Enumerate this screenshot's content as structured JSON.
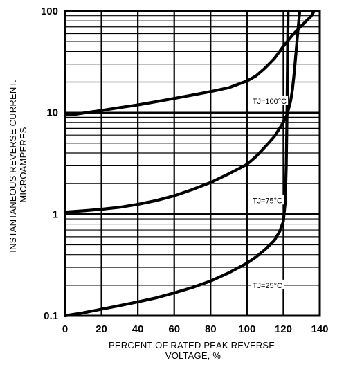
{
  "chart_data": {
    "type": "line",
    "title": "",
    "xlabel_lines": [
      "PERCENT OF RATED PEAK REVERSE",
      "VOLTAGE, %"
    ],
    "ylabel_lines": [
      "INSTANTANEOUS REVERSE CURRENT.",
      "MICROAMPERES"
    ],
    "x_scale": "linear",
    "y_scale": "log",
    "xlim": [
      0,
      140
    ],
    "ylim": [
      0.1,
      100
    ],
    "x_ticks": [
      0,
      20,
      40,
      60,
      80,
      100,
      120,
      140
    ],
    "x_tick_labels": [
      "0",
      "20",
      "40",
      "60",
      "80",
      "100",
      "120",
      "140"
    ],
    "y_ticks": [
      0.1,
      1,
      10,
      100
    ],
    "y_tick_labels": [
      "0.1",
      "1",
      "10",
      "100"
    ],
    "grid": true,
    "series": [
      {
        "name": "TJ=100°C",
        "label_x": 103,
        "label_y": 13,
        "x": [
          0,
          5,
          10,
          20,
          30,
          40,
          50,
          60,
          70,
          80,
          90,
          100,
          105,
          110,
          115,
          120,
          125,
          130,
          135,
          137
        ],
        "y": [
          9.5,
          9.6,
          9.9,
          10.5,
          11.2,
          11.9,
          12.8,
          13.8,
          14.9,
          16.1,
          17.6,
          20.5,
          23,
          27.5,
          34,
          45,
          58,
          72,
          88,
          100
        ]
      },
      {
        "name": "TJ=75°C",
        "label_x": 103,
        "label_y": 1.37,
        "x": [
          0,
          10,
          20,
          30,
          40,
          50,
          60,
          70,
          80,
          90,
          100,
          105,
          110,
          115,
          119,
          122,
          124,
          125,
          126,
          127,
          128,
          129
        ],
        "y": [
          1.05,
          1.08,
          1.12,
          1.17,
          1.25,
          1.36,
          1.52,
          1.75,
          2.05,
          2.5,
          3.1,
          3.7,
          4.6,
          5.8,
          7.5,
          9.5,
          13,
          17,
          25,
          40,
          65,
          100
        ]
      },
      {
        "name": "TJ=25°C",
        "label_x": 103,
        "label_y": 0.2,
        "x": [
          0,
          10,
          20,
          30,
          40,
          50,
          60,
          70,
          80,
          90,
          100,
          105,
          110,
          115,
          118,
          120,
          121,
          121.6,
          122,
          122.3,
          122.6
        ],
        "y": [
          0.1,
          0.107,
          0.116,
          0.126,
          0.137,
          0.15,
          0.168,
          0.19,
          0.22,
          0.265,
          0.33,
          0.38,
          0.45,
          0.55,
          0.68,
          0.85,
          1.3,
          3,
          10,
          40,
          100
        ]
      }
    ],
    "colors": {
      "line": "#000000",
      "grid": "#000000",
      "background": "#ffffff"
    }
  }
}
